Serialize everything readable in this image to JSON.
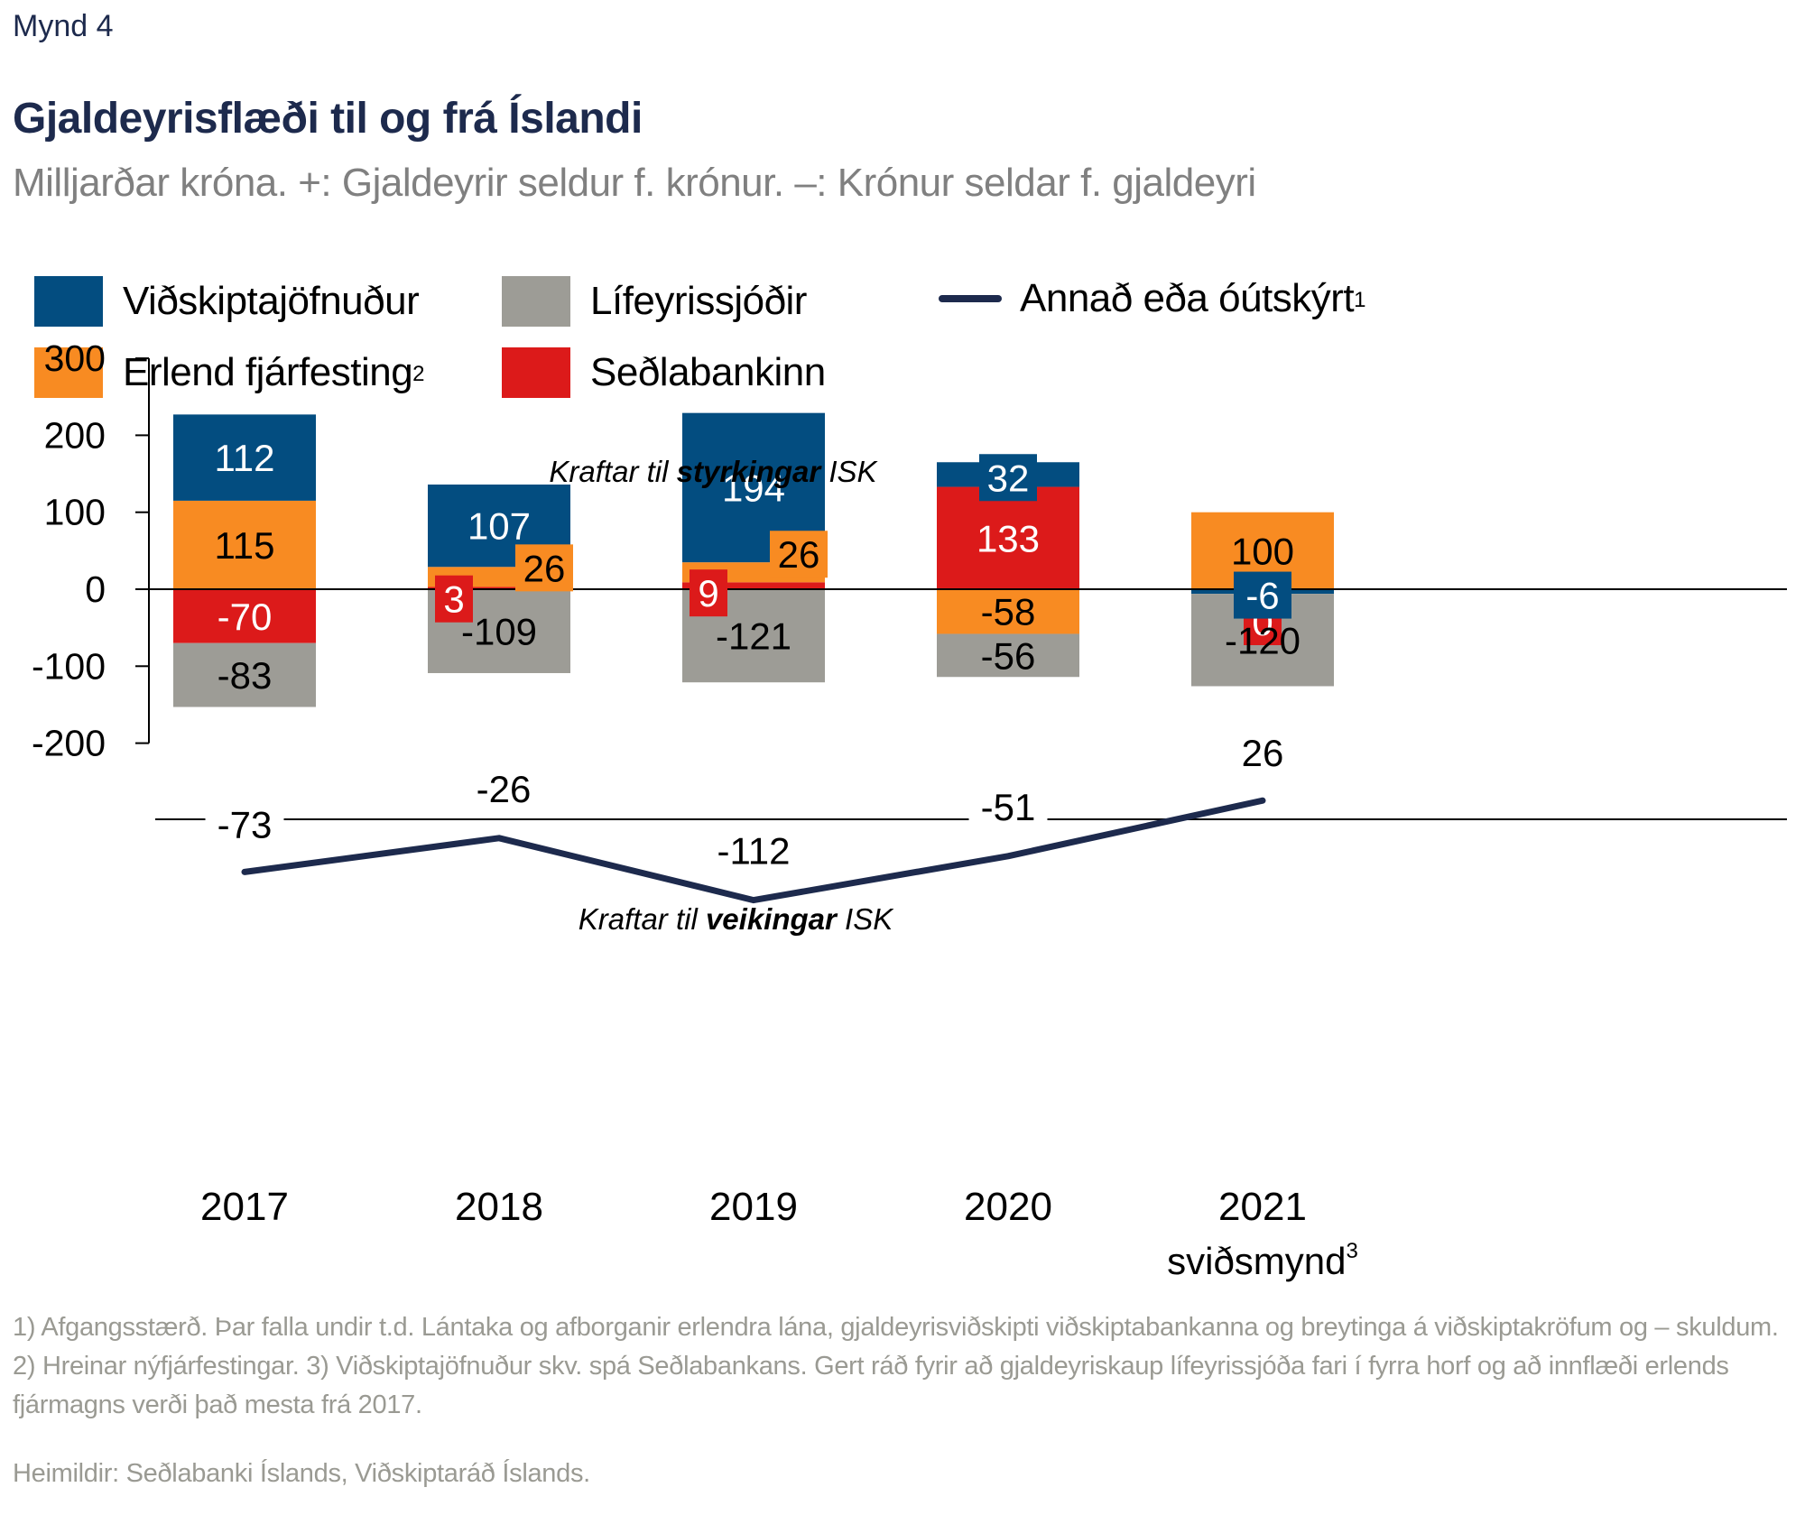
{
  "figure_label": "Mynd 4",
  "title": "Gjaldeyrisflæði til og frá Íslandi",
  "subtitle": "Milljarðar króna. +: Gjaldeyrir seldur f. krónur. –: Krónur seldar f. gjaldeyri",
  "legend": [
    {
      "label": "Viðskiptajöfnuður",
      "sup": "",
      "color": "#034d80",
      "kind": "box"
    },
    {
      "label": "Lífeyrissjóðir",
      "sup": "",
      "color": "#9d9c96",
      "kind": "box"
    },
    {
      "label": "Annað eða óútskýrt",
      "sup": "1",
      "color": "#1d2a4d",
      "kind": "line"
    },
    {
      "label": "Erlend fjárfesting",
      "sup": "2",
      "color": "#f88b22",
      "kind": "box"
    },
    {
      "label": "Seðlabankinn",
      "sup": "",
      "color": "#dc1a1a",
      "kind": "box"
    }
  ],
  "annotations": {
    "top_prefix": "Kraftar til ",
    "top_bold": "styrkingar",
    "top_suffix": " ISK",
    "bottom_prefix": "Kraftar til ",
    "bottom_bold": "veikingar",
    "bottom_suffix": " ISK"
  },
  "chart_data": [
    {
      "type": "bar",
      "stacked": true,
      "title": "Gjaldeyrisflæði til og frá Íslandi",
      "ylabel": "Milljarðar króna",
      "categories": [
        "2017",
        "2018",
        "2019",
        "2020",
        "2021"
      ],
      "category_sublabels": [
        "",
        "",
        "",
        "",
        "sviðsmynd"
      ],
      "category_sublabel_sup": [
        "",
        "",
        "",
        "",
        "3"
      ],
      "ylim": [
        -200,
        300
      ],
      "yticks": [
        300,
        200,
        100,
        0,
        -100,
        -200
      ],
      "grid": false,
      "legend_position": "top-left",
      "series": [
        {
          "name": "Seðlabankinn",
          "color": "#dc1a1a",
          "label_color": "#ffffff",
          "values": [
            -70,
            3,
            9,
            133,
            0
          ]
        },
        {
          "name": "Erlend fjárfesting",
          "color": "#f88b22",
          "label_color": "#000000",
          "values": [
            115,
            26,
            26,
            -58,
            100
          ]
        },
        {
          "name": "Viðskiptajöfnuður",
          "color": "#034d80",
          "label_color": "#ffffff",
          "values": [
            112,
            107,
            194,
            32,
            -6
          ]
        },
        {
          "name": "Lífeyrissjóðir",
          "color": "#9d9c96",
          "label_color": "#000000",
          "values": [
            -83,
            -109,
            -121,
            -56,
            -120
          ]
        }
      ]
    },
    {
      "type": "line",
      "name": "Annað eða óútskýrt",
      "color": "#1d2a4d",
      "categories": [
        "2017",
        "2018",
        "2019",
        "2020",
        "2021"
      ],
      "values": [
        -73,
        -26,
        -112,
        -51,
        26
      ],
      "baseline": 0
    }
  ],
  "footnotes": "1) Afgangsstærð. Þar falla undir t.d. Lántaka og afborganir erlendra lána, gjaldeyrisviðskipti viðskiptabankanna og breytinga á viðskiptakröfum og – skuldum. 2) Hreinar nýfjárfestingar. 3) Viðskiptajöfnuður skv. spá Seðlabankans. Gert ráð fyrir að gjaldeyriskaup lífeyrissjóða fari í fyrra horf og að innflæði erlends fjármagns verði það mesta frá 2017.",
  "sources": "Heimildir: Seðlabanki Íslands, Viðskiptaráð Íslands."
}
